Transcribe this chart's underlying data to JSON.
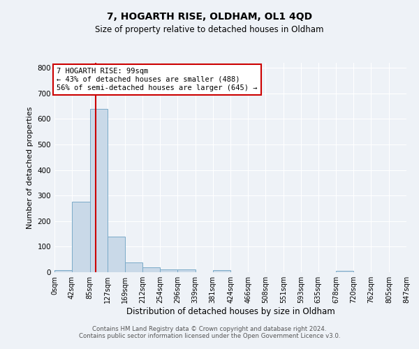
{
  "title": "7, HOGARTH RISE, OLDHAM, OL1 4QD",
  "subtitle": "Size of property relative to detached houses in Oldham",
  "xlabel": "Distribution of detached houses by size in Oldham",
  "ylabel": "Number of detached properties",
  "bin_edges": [
    0,
    42,
    85,
    127,
    169,
    212,
    254,
    296,
    339,
    381,
    424,
    466,
    508,
    551,
    593,
    635,
    678,
    720,
    762,
    805,
    847
  ],
  "bar_heights": [
    8,
    275,
    640,
    140,
    38,
    20,
    12,
    10,
    0,
    8,
    0,
    0,
    0,
    0,
    0,
    0,
    5,
    0,
    0,
    0
  ],
  "bar_color": "#c9d9e8",
  "bar_edge_color": "#7aaac8",
  "background_color": "#eef2f7",
  "grid_color": "#ffffff",
  "vline_x": 99,
  "vline_color": "#cc0000",
  "annotation_box_text": "7 HOGARTH RISE: 99sqm\n← 43% of detached houses are smaller (488)\n56% of semi-detached houses are larger (645) →",
  "annotation_box_color": "#cc0000",
  "ylim": [
    0,
    820
  ],
  "yticks": [
    0,
    100,
    200,
    300,
    400,
    500,
    600,
    700,
    800
  ],
  "tick_labels": [
    "0sqm",
    "42sqm",
    "85sqm",
    "127sqm",
    "169sqm",
    "212sqm",
    "254sqm",
    "296sqm",
    "339sqm",
    "381sqm",
    "424sqm",
    "466sqm",
    "508sqm",
    "551sqm",
    "593sqm",
    "635sqm",
    "678sqm",
    "720sqm",
    "762sqm",
    "805sqm",
    "847sqm"
  ],
  "footer_line1": "Contains HM Land Registry data © Crown copyright and database right 2024.",
  "footer_line2": "Contains public sector information licensed under the Open Government Licence v3.0."
}
